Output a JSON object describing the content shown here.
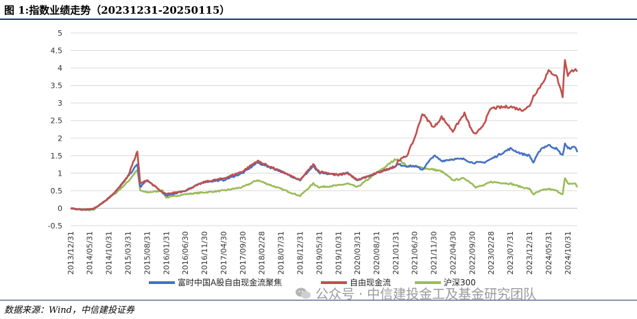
{
  "title": "图 1:指数业绩走势（20231231-20250115）",
  "source": "数据来源：Wind，中信建投证券",
  "watermark": "公众号 · 中信建投金工及基金研究团队",
  "watermark_icon": "wechat-icon",
  "chart_data": {
    "type": "line",
    "title": "",
    "xlabel": "",
    "ylabel": "",
    "ylim": [
      -0.5,
      5
    ],
    "yticks": [
      -0.5,
      0,
      0.5,
      1,
      1.5,
      2,
      2.5,
      3,
      3.5,
      4,
      4.5,
      5
    ],
    "ytick_labels": [
      "-0.5",
      "0",
      "0.5",
      "1",
      "1.5",
      "2",
      "2.5",
      "3",
      "3.5",
      "4",
      "4.5",
      "5"
    ],
    "xtick_labels": [
      "2013/12/31",
      "2014/05/31",
      "2014/10/31",
      "2015/03/31",
      "2015/08/31",
      "2016/01/31",
      "2016/06/30",
      "2016/11/30",
      "2017/04/30",
      "2017/09/30",
      "2018/02/28",
      "2018/07/31",
      "2018/12/31",
      "2019/05/31",
      "2019/10/31",
      "2020/03/31",
      "2020/08/31",
      "2021/01/31",
      "2021/06/30",
      "2021/11/30",
      "2022/04/30",
      "2022/09/30",
      "2023/02/28",
      "2023/07/31",
      "2023/12/31",
      "2024/05/31",
      "2024/10/31"
    ],
    "x": [
      "2013/12/31",
      "2014/03/31",
      "2014/06/30",
      "2014/09/30",
      "2014/12/31",
      "2015/03/31",
      "2015/06/15",
      "2015/07/08",
      "2015/08/31",
      "2015/12/31",
      "2016/01/31",
      "2016/06/30",
      "2016/11/30",
      "2017/04/30",
      "2017/09/30",
      "2018/01/25",
      "2018/07/31",
      "2018/12/31",
      "2019/04/15",
      "2019/05/31",
      "2019/10/31",
      "2020/01/15",
      "2020/03/31",
      "2020/08/31",
      "2021/01/31",
      "2021/02/18",
      "2021/04/30",
      "2021/06/30",
      "2021/08/31",
      "2021/11/30",
      "2022/01/31",
      "2022/04/30",
      "2022/07/31",
      "2022/09/30",
      "2022/10/31",
      "2022/12/31",
      "2023/02/28",
      "2023/07/31",
      "2023/10/31",
      "2023/12/31",
      "2024/01/31",
      "2024/03/31",
      "2024/05/31",
      "2024/07/31",
      "2024/09/20",
      "2024/10/08",
      "2024/10/31",
      "2024/12/31",
      "2025/01/15"
    ],
    "grid": true,
    "legend_position": "bottom",
    "series": [
      {
        "name": "富时中国A股自由现金流聚焦",
        "color": "#4472c4",
        "values": [
          0,
          -0.05,
          -0.02,
          0.2,
          0.5,
          0.9,
          1.25,
          0.6,
          0.8,
          0.45,
          0.35,
          0.5,
          0.75,
          0.8,
          1.0,
          1.3,
          1.05,
          0.8,
          1.2,
          1.0,
          0.95,
          1.0,
          0.8,
          1.0,
          1.2,
          1.25,
          1.2,
          1.2,
          1.1,
          1.5,
          1.35,
          1.4,
          1.4,
          1.3,
          1.3,
          1.3,
          1.4,
          1.7,
          1.55,
          1.5,
          1.3,
          1.7,
          1.8,
          1.7,
          1.5,
          1.85,
          1.7,
          1.75,
          1.6
        ]
      },
      {
        "name": "自由现金流",
        "color": "#c0504d",
        "values": [
          0,
          -0.05,
          -0.02,
          0.2,
          0.5,
          0.9,
          1.62,
          0.7,
          0.8,
          0.45,
          0.4,
          0.5,
          0.75,
          0.85,
          1.05,
          1.35,
          1.05,
          0.8,
          1.25,
          1.05,
          0.95,
          1.0,
          0.8,
          1.0,
          1.2,
          1.35,
          1.5,
          2.0,
          2.7,
          2.3,
          2.6,
          2.2,
          2.7,
          2.2,
          2.1,
          2.4,
          2.85,
          2.9,
          2.8,
          2.9,
          3.2,
          3.5,
          3.9,
          3.8,
          3.2,
          4.25,
          3.8,
          4.0,
          3.9
        ]
      },
      {
        "name": "沪深300",
        "color": "#9bbb59",
        "values": [
          0,
          -0.05,
          -0.05,
          0.2,
          0.45,
          0.75,
          1.1,
          0.5,
          0.45,
          0.5,
          0.3,
          0.4,
          0.45,
          0.5,
          0.6,
          0.8,
          0.55,
          0.35,
          0.7,
          0.6,
          0.65,
          0.7,
          0.6,
          1.0,
          1.4,
          1.4,
          1.2,
          1.2,
          1.15,
          1.1,
          1.05,
          0.8,
          0.85,
          0.7,
          0.6,
          0.65,
          0.75,
          0.7,
          0.6,
          0.55,
          0.4,
          0.5,
          0.55,
          0.5,
          0.4,
          0.85,
          0.7,
          0.7,
          0.6
        ]
      }
    ]
  }
}
